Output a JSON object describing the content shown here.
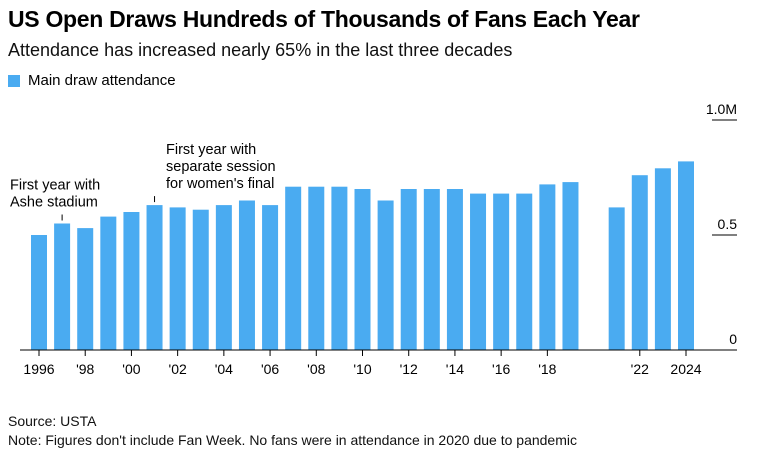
{
  "colors": {
    "bar": "#4AABF1",
    "axis": "#000000"
  },
  "chart_data": {
    "type": "bar",
    "title": "US Open Draws Hundreds of Thousands of Fans Each Year",
    "subtitle": "Attendance has increased nearly 65% in the last three decades",
    "legend": [
      "Main draw attendance"
    ],
    "legend_position": "top-left",
    "xlabel": "",
    "ylabel": "",
    "ylim": [
      0,
      1.0
    ],
    "y_ticks": [
      {
        "value": 0,
        "label": "0"
      },
      {
        "value": 0.5,
        "label": "0.5"
      },
      {
        "value": 1.0,
        "label": "1.0M"
      }
    ],
    "x_tick_labels": [
      {
        "year": 1996,
        "label": "1996"
      },
      {
        "year": 1998,
        "label": "'98"
      },
      {
        "year": 2000,
        "label": "'00"
      },
      {
        "year": 2002,
        "label": "'02"
      },
      {
        "year": 2004,
        "label": "'04"
      },
      {
        "year": 2006,
        "label": "'06"
      },
      {
        "year": 2008,
        "label": "'08"
      },
      {
        "year": 2010,
        "label": "'10"
      },
      {
        "year": 2012,
        "label": "'12"
      },
      {
        "year": 2014,
        "label": "'14"
      },
      {
        "year": 2016,
        "label": "'16"
      },
      {
        "year": 2018,
        "label": "'18"
      },
      {
        "year": 2022,
        "label": "'22"
      },
      {
        "year": 2024,
        "label": "2024"
      }
    ],
    "years": [
      1996,
      1997,
      1998,
      1999,
      2000,
      2001,
      2002,
      2003,
      2004,
      2005,
      2006,
      2007,
      2008,
      2009,
      2010,
      2011,
      2012,
      2013,
      2014,
      2015,
      2016,
      2017,
      2018,
      2019,
      2021,
      2022,
      2023,
      2024
    ],
    "values": [
      0.5,
      0.55,
      0.53,
      0.58,
      0.6,
      0.63,
      0.62,
      0.61,
      0.63,
      0.65,
      0.63,
      0.71,
      0.71,
      0.71,
      0.7,
      0.65,
      0.7,
      0.7,
      0.7,
      0.68,
      0.68,
      0.68,
      0.72,
      0.73,
      0.62,
      0.76,
      0.79,
      0.82
    ],
    "annotations": [
      {
        "year": 1997,
        "lines": [
          "First year with",
          "Ashe stadium"
        ]
      },
      {
        "year": 2001,
        "lines": [
          "First year with",
          "separate session",
          "for women's final"
        ]
      }
    ]
  },
  "footer": {
    "source": "Source: USTA",
    "note": "Note: Figures don't include Fan Week. No fans were in attendance in 2020 due to pandemic"
  }
}
